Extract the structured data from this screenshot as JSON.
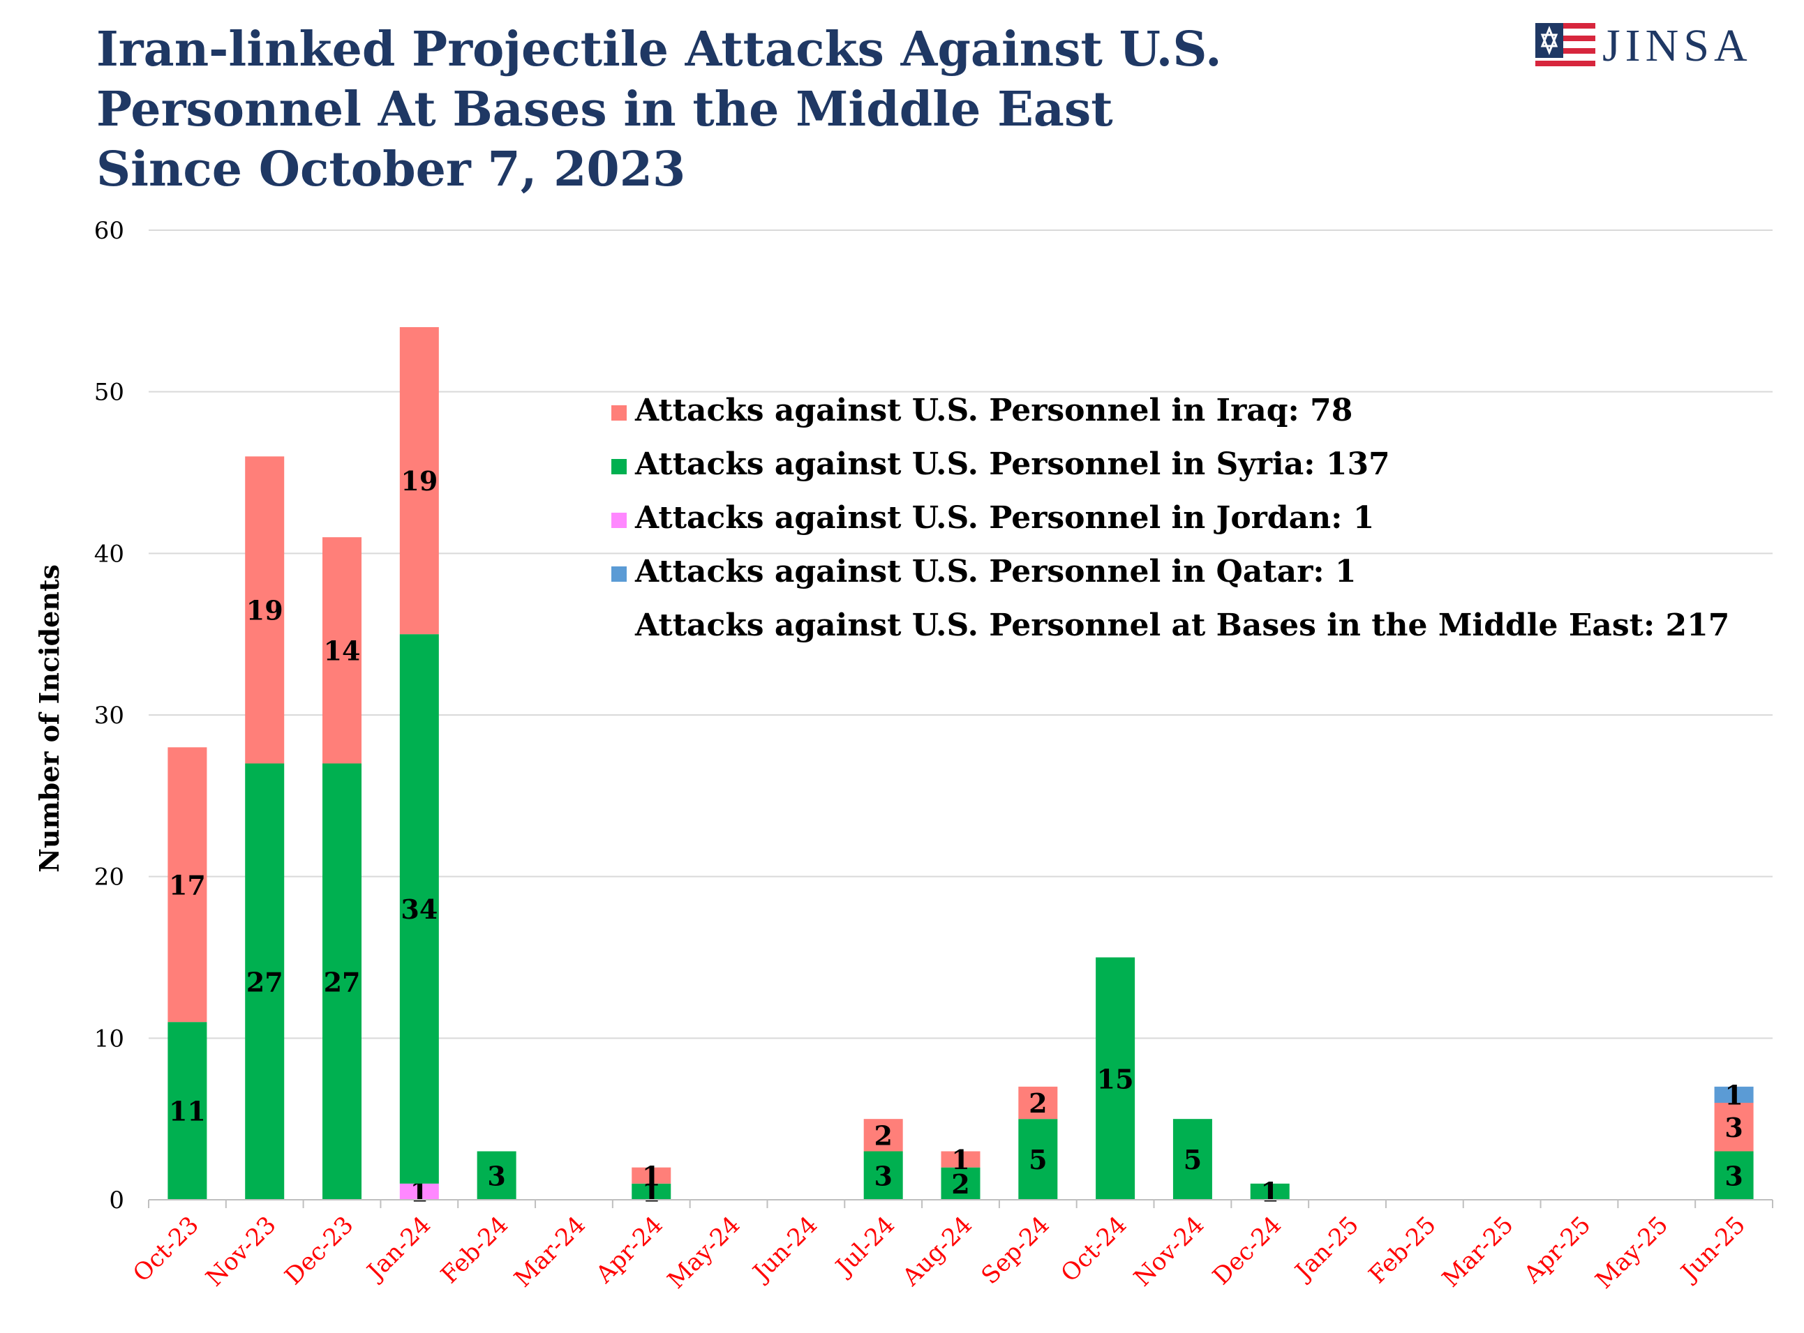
{
  "title_lines": [
    "Iran-linked Projectile Attacks Against U.S.",
    "Personnel At Bases in the Middle East",
    "Since October 7, 2023"
  ],
  "logo": {
    "text": "JINSA",
    "icon": "star-of-david-flag-icon"
  },
  "chart_data": {
    "type": "bar",
    "stacked": true,
    "title": "Iran-linked Projectile Attacks Against U.S. Personnel At Bases in the Middle East Since October 7, 2023",
    "xlabel": "",
    "ylabel": "Number of Incidents",
    "ylim": [
      0,
      60
    ],
    "yticks": [
      0,
      10,
      20,
      30,
      40,
      50,
      60
    ],
    "grid": true,
    "legend_position": "top-right",
    "categories": [
      "Oct-23",
      "Nov-23",
      "Dec-23",
      "Jan-24",
      "Feb-24",
      "Mar-24",
      "Apr-24",
      "May-24",
      "Jun-24",
      "Jul-24",
      "Aug-24",
      "Sep-24",
      "Oct-24",
      "Nov-24",
      "Dec-24",
      "Jan-25",
      "Feb-25",
      "Mar-25",
      "Apr-25",
      "May-25",
      "Jun-25"
    ],
    "series": [
      {
        "name": "Attacks against U.S. Personnel in Jordan: 1",
        "color": "#ff88ff",
        "values": [
          0,
          0,
          0,
          1,
          0,
          0,
          0,
          0,
          0,
          0,
          0,
          0,
          0,
          0,
          0,
          0,
          0,
          0,
          0,
          0,
          0
        ]
      },
      {
        "name": "Attacks against U.S. Personnel in Syria: 137",
        "color": "#00b050",
        "values": [
          11,
          27,
          27,
          34,
          3,
          0,
          1,
          0,
          0,
          3,
          2,
          5,
          15,
          5,
          1,
          0,
          0,
          0,
          0,
          0,
          3
        ]
      },
      {
        "name": "Attacks against U.S. Personnel in Iraq: 78",
        "color": "#ff7f79",
        "values": [
          17,
          19,
          14,
          19,
          0,
          0,
          1,
          0,
          0,
          2,
          1,
          2,
          0,
          0,
          0,
          0,
          0,
          0,
          0,
          0,
          3
        ]
      },
      {
        "name": "Attacks against U.S. Personnel in Qatar: 1",
        "color": "#5b9bd5",
        "values": [
          0,
          0,
          0,
          0,
          0,
          0,
          0,
          0,
          0,
          0,
          0,
          0,
          0,
          0,
          0,
          0,
          0,
          0,
          0,
          0,
          1
        ]
      }
    ],
    "legend_order": [
      2,
      1,
      0,
      3
    ],
    "legend_total_text": "Attacks against U.S. Personnel at Bases in the Middle East: 217",
    "tick_label_color": "#ff0000",
    "label_color": "#000000"
  }
}
